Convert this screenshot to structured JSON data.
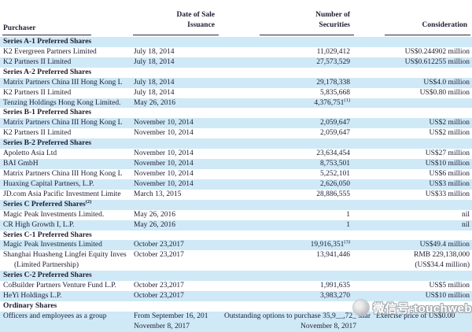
{
  "header": {
    "purchaser": "Purchaser",
    "date_line1": "Date of Sale",
    "date_line2": "Issuance",
    "securities_line1": "Number of",
    "securities_line2": "Securities",
    "consideration": "Consideration"
  },
  "colors": {
    "stripe": "#cfe9f7",
    "text": "#1e1e34",
    "rule": "#2a2a3a"
  },
  "watermark": {
    "label": "微信号:touchweb",
    "logo": "wechat-logo-icon"
  },
  "rows": [
    {
      "type": "section",
      "label": "Series A-1 Preferred Shares"
    },
    {
      "type": "data",
      "purchaser": "K2 Evergreen Partners Limited",
      "date": "July 18, 2014",
      "securities": "11,029,412",
      "consideration": "US$0.244902 million"
    },
    {
      "type": "data",
      "purchaser": "K2 Partners II Limited",
      "date": "July 18, 2014",
      "securities": "27,573,529",
      "consideration": "US$0.612255 million"
    },
    {
      "type": "section",
      "label": "Series A-2 Preferred Shares"
    },
    {
      "type": "data",
      "purchaser": "Matrix Partners China III Hong Kong L",
      "date": "July 18, 2014",
      "securities": "29,178,338",
      "consideration": "US$4.0 million"
    },
    {
      "type": "data",
      "purchaser": "K2 Partners II Limited",
      "date": "July 18, 2014",
      "securities": "5,835,668",
      "consideration": "US$0.80 million"
    },
    {
      "type": "data",
      "purchaser": "Tenzing Holdings Hong Kong Limited.",
      "date": "May 26, 2016",
      "securities": "4,376,751",
      "securities_sup": "(1)",
      "consideration": ""
    },
    {
      "type": "section",
      "label": "Series B-1 Preferred Shares"
    },
    {
      "type": "data",
      "purchaser": "Matrix Partners China III Hong Kong L",
      "date": "November 10, 2014",
      "securities": "2,059,647",
      "consideration": "US$2 million"
    },
    {
      "type": "data",
      "purchaser": "K2 Partners II Limited",
      "date": "November 10, 2014",
      "securities": "2,059,647",
      "consideration": "US$2 million"
    },
    {
      "type": "section",
      "label": "Series B-2 Preferred Shares"
    },
    {
      "type": "data",
      "purchaser": "Apoletto Asia Ltd",
      "date": "November 10, 2014",
      "securities": "23,634,454",
      "consideration": "US$27 million"
    },
    {
      "type": "data",
      "purchaser": "BAI GmbH",
      "date": "November 10, 2014",
      "securities": "8,753,501",
      "consideration": "US$10 million"
    },
    {
      "type": "data",
      "purchaser": "Matrix Partners China III Hong Kong L",
      "date": "November 10, 2014",
      "securities": "5,252,101",
      "consideration": "US$6 million"
    },
    {
      "type": "data",
      "purchaser": "Huaxing Capital Partners, L.P.",
      "date": "November 10, 2014",
      "securities": "2,626,050",
      "consideration": "US$3 million"
    },
    {
      "type": "data",
      "purchaser": "JD.com Asia Pacific Investment Limite",
      "date": "March 13, 2015",
      "securities": "28,886,555",
      "consideration": "US$33 million"
    },
    {
      "type": "section",
      "label": "Series C Preferred Shares",
      "sup": "(2)"
    },
    {
      "type": "data",
      "purchaser": "Magic Peak Investments Limited.",
      "date": "May 26, 2016",
      "securities": "1",
      "consideration": "nil"
    },
    {
      "type": "data",
      "purchaser": "CR High Growth I, L.P.",
      "date": "May 26, 2016",
      "securities": "1",
      "consideration": "nil"
    },
    {
      "type": "section",
      "label": "Series C-1 Preferred Shares"
    },
    {
      "type": "data",
      "purchaser": "Magic Peak Investments Limited",
      "date": "October 23,2017",
      "securities": "19,916,351",
      "securities_sup": "(3)",
      "consideration": "US$49.4 million"
    },
    {
      "type": "data",
      "purchaser": "Shanghai Huasheng Lingfei Equity Inves",
      "purchaser_line2": "(Limited Partnership)",
      "date": "October 23,2017",
      "securities": "13,941,446",
      "consideration": "RMB 229,138,000",
      "consideration_line2": "(US$34.4 million)"
    },
    {
      "type": "section",
      "label": "Series C-2 Preferred Shares"
    },
    {
      "type": "data",
      "purchaser": "CoBuilder Partners Venture Fund L.P.",
      "date": "October 23,2017",
      "securities": "1,991,635",
      "consideration": "US$5 million"
    },
    {
      "type": "data",
      "purchaser": "HeYi Holdings L.P.",
      "date": "October 23,2017",
      "securities": "3,983,270",
      "consideration": "US$10 million"
    },
    {
      "type": "section",
      "label": "Ordinary Shares"
    },
    {
      "type": "options",
      "purchaser": "Officers and employees as a group",
      "date_line1": "From September 16, 201",
      "date_line2": "November 8, 2017",
      "securities_line1": "Outstanding options to purchase 35,9__,72_ shar",
      "securities_line2": "November 8, 2017",
      "consideration_line1": "Exercise price of US$0.00"
    }
  ]
}
